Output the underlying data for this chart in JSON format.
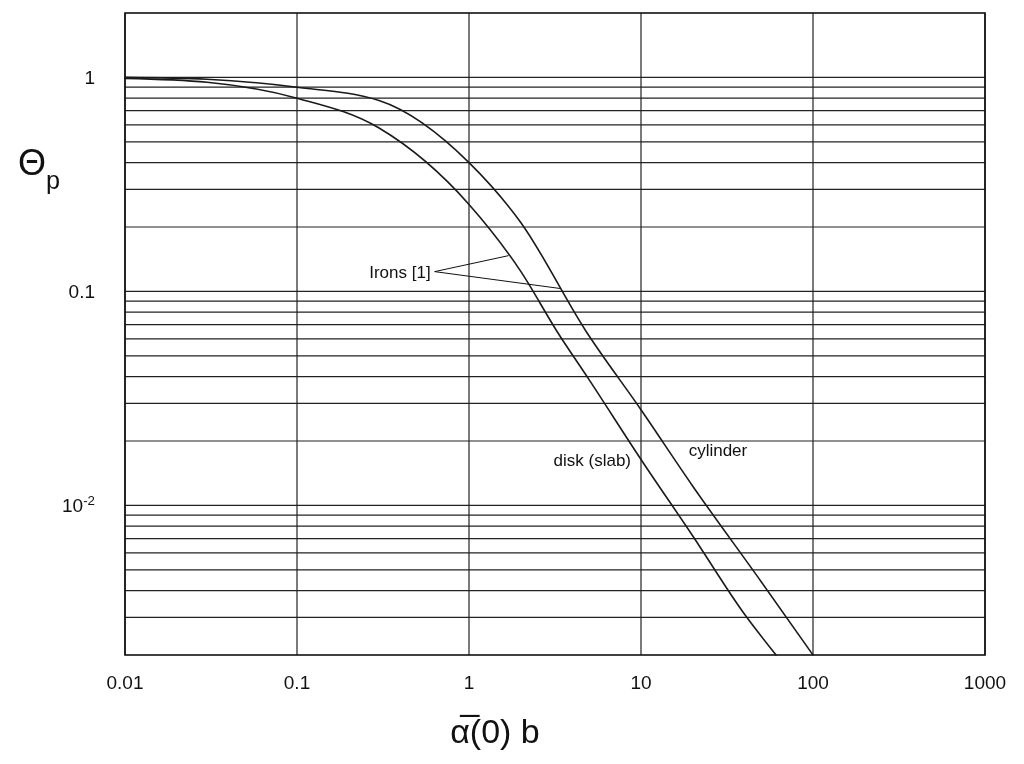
{
  "chart_data": {
    "type": "line",
    "xlabel": "α̅(0) b",
    "ylabel": "Θ$_{p}$",
    "log": "xy",
    "grid": true,
    "line_style": "solid",
    "marker": "none",
    "xlim": [
      0.01,
      1000
    ],
    "xticks": [
      0.01,
      0.1,
      1,
      10,
      100,
      1000
    ],
    "ylim": [
      0.002,
      2
    ],
    "yticks": [
      {
        "value": 0.003,
        "label": null
      },
      {
        "value": 0.004,
        "label": null
      },
      {
        "value": 0.005,
        "label": null
      },
      {
        "value": 0.006,
        "label": null
      },
      {
        "value": 0.007,
        "label": null
      },
      {
        "value": 0.008,
        "label": null
      },
      {
        "value": 0.009,
        "label": null
      },
      {
        "value": 0.01,
        "label": "10$^{-2}$"
      },
      {
        "value": 0.02,
        "label": null
      },
      {
        "value": 0.03,
        "label": null
      },
      {
        "value": 0.04,
        "label": null
      },
      {
        "value": 0.05,
        "label": null
      },
      {
        "value": 0.06,
        "label": null
      },
      {
        "value": 0.07,
        "label": null
      },
      {
        "value": 0.08,
        "label": null
      },
      {
        "value": 0.09,
        "label": null
      },
      0.1,
      {
        "value": 0.2,
        "label": null
      },
      {
        "value": 0.3,
        "label": null
      },
      {
        "value": 0.4,
        "label": null
      },
      {
        "value": 0.5,
        "label": null
      },
      {
        "value": 0.6,
        "label": null
      },
      {
        "value": 0.7,
        "label": null
      },
      {
        "value": 0.8,
        "label": null
      },
      {
        "value": 0.9,
        "label": null
      },
      1
    ],
    "series": [
      {
        "name": "disk (slab)",
        "color": "#1a1a1a",
        "x": [
          0.01,
          0.03,
          0.1,
          0.3,
          1,
          2,
          3.25,
          5,
          10,
          20,
          40,
          61
        ],
        "values": [
          0.99,
          0.95,
          0.8,
          0.58,
          0.255,
          0.124,
          0.065,
          0.0386,
          0.0164,
          0.0072,
          0.0031,
          0.002
        ]
      },
      {
        "name": "cylinder",
        "color": "#1a1a1a",
        "x": [
          0.01,
          0.03,
          0.1,
          0.3,
          1,
          2,
          4.8,
          10,
          20,
          50,
          100
        ],
        "values": [
          1.0,
          0.98,
          0.9,
          0.78,
          0.4,
          0.21,
          0.065,
          0.028,
          0.0123,
          0.0044,
          0.002
        ]
      }
    ],
    "annotations": [
      {
        "text": "Irons [1]",
        "x": 1.7,
        "y": 0.147
      }
    ]
  }
}
